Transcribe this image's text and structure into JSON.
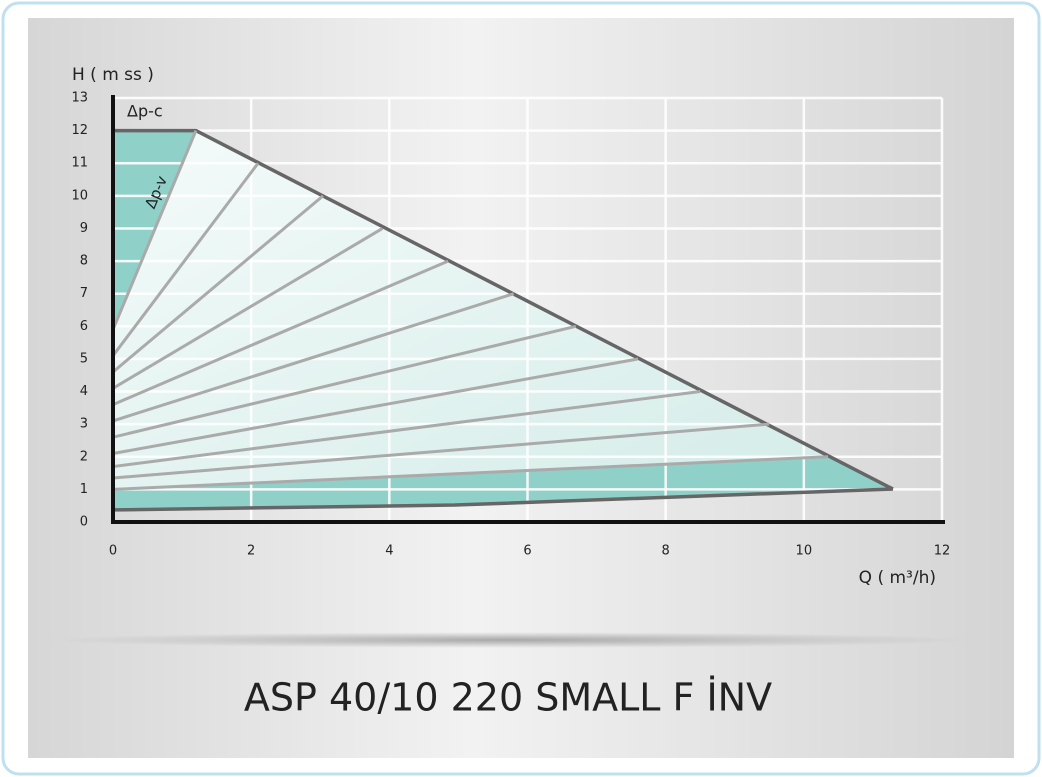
{
  "chart_data": {
    "type": "line",
    "title": "ASP 40/10 220 SMALL F İNV",
    "y_label": "H ( m ss )",
    "x_label": "Q ( m³/h)",
    "annotations": [
      "Δp-c",
      "Δp-v"
    ],
    "xlim": [
      0,
      12
    ],
    "xticks": [
      0,
      2,
      4,
      6,
      8,
      10,
      12
    ],
    "ylim": [
      0,
      13
    ],
    "yticks": [
      0,
      1,
      2,
      3,
      4,
      5,
      6,
      7,
      8,
      9,
      10,
      11,
      12,
      13
    ],
    "grid": true,
    "fill_color": "#8fd0c8",
    "series": [
      {
        "color": "#666666",
        "x": [
          0,
          1.2,
          11.29
        ],
        "values": [
          12,
          12,
          1.01
        ]
      },
      {
        "color": "#666666",
        "x": [
          0,
          4.95,
          11.29
        ],
        "values": [
          0.37,
          0.52,
          1.01
        ]
      },
      {
        "color": "#aaaaaa",
        "x": [
          0,
          1.2
        ],
        "values": [
          5.9,
          12
        ]
      },
      {
        "color": "#aaaaaa",
        "x": [
          0,
          2.1
        ],
        "values": [
          5.1,
          11
        ]
      },
      {
        "color": "#aaaaaa",
        "x": [
          0,
          3.04
        ],
        "values": [
          4.6,
          10
        ]
      },
      {
        "color": "#aaaaaa",
        "x": [
          0,
          3.9
        ],
        "values": [
          4.1,
          9
        ]
      },
      {
        "color": "#aaaaaa",
        "x": [
          0,
          4.85
        ],
        "values": [
          3.6,
          8
        ]
      },
      {
        "color": "#aaaaaa",
        "x": [
          0,
          5.8
        ],
        "values": [
          3.1,
          7
        ]
      },
      {
        "color": "#aaaaaa",
        "x": [
          0,
          6.7
        ],
        "values": [
          2.6,
          6
        ]
      },
      {
        "color": "#aaaaaa",
        "x": [
          0,
          7.6
        ],
        "values": [
          2.1,
          5
        ]
      },
      {
        "color": "#aaaaaa",
        "x": [
          0,
          8.5
        ],
        "values": [
          1.7,
          4
        ]
      },
      {
        "color": "#aaaaaa",
        "x": [
          0,
          9.5
        ],
        "values": [
          1.35,
          3
        ]
      },
      {
        "color": "#aaaaaa",
        "x": [
          0,
          10.35
        ],
        "values": [
          1.0,
          2
        ]
      }
    ]
  }
}
